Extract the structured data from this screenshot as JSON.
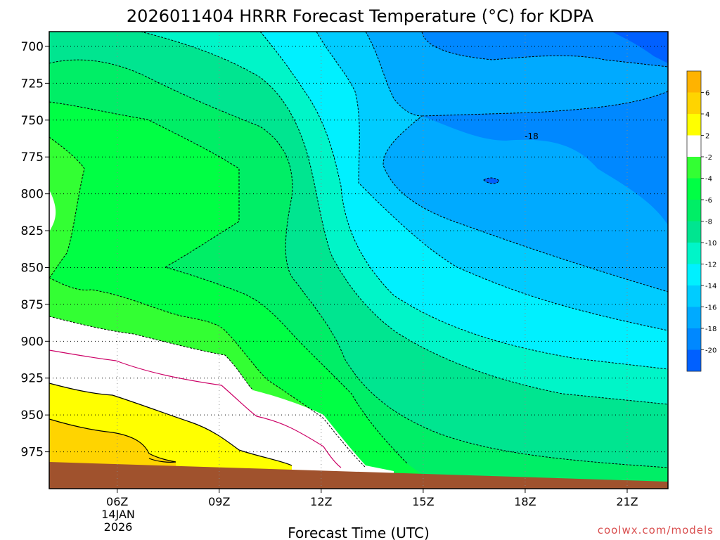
{
  "chart_data": {
    "type": "contour",
    "title": "2026011404 HRRR Forecast Temperature (°C) for KDPA",
    "xlabel": "Forecast Time (UTC)",
    "ylabel": "",
    "x_ticks": [
      "06Z",
      "09Z",
      "12Z",
      "15Z",
      "18Z",
      "21Z"
    ],
    "x_date_label": [
      "14JAN",
      "2026"
    ],
    "x_range_hours": [
      4.0,
      22.2
    ],
    "y_ticks": [
      700,
      725,
      750,
      775,
      800,
      825,
      850,
      875,
      900,
      925,
      950,
      975
    ],
    "y_range_hpa": [
      690,
      1000
    ],
    "y_scale": "pressure (top-down)",
    "grid": "dotted",
    "contour_levels": [
      6,
      4,
      2,
      0,
      -2,
      -4,
      -6,
      -8,
      -10,
      -12,
      -14,
      -16,
      -18,
      -20
    ],
    "contour_labels": [
      {
        "text": "-18",
        "hour": 18.0,
        "hpa": 749
      }
    ],
    "ground_surface_hpa": [
      {
        "hour": 4.0,
        "hpa": 974
      },
      {
        "hour": 8.0,
        "hpa": 975
      },
      {
        "hour": 12.0,
        "hpa": 977
      },
      {
        "hour": 16.0,
        "hpa": 980
      },
      {
        "hour": 20.0,
        "hpa": 983
      },
      {
        "hour": 22.2,
        "hpa": 985
      }
    ],
    "colorbar": {
      "ticks": [
        "6",
        "4",
        "2",
        "-2",
        "-4",
        "-6",
        "-8",
        "-10",
        "-12",
        "-14",
        "-16",
        "-18",
        "-20"
      ],
      "colors": [
        "#ffb300",
        "#ffd400",
        "#ffff00",
        "#ffffff",
        "#33ff33",
        "#00ff44",
        "#00ee66",
        "#00e590",
        "#00f5c8",
        "#00f0ff",
        "#00ccff",
        "#00aaff",
        "#0088ff",
        "#0060ff"
      ]
    },
    "bands": [
      {
        "level": "<=-20",
        "color": "#0060ff"
      },
      {
        "level": "-20 to -18",
        "color": "#0088ff"
      },
      {
        "level": "-18 to -16",
        "color": "#00aaff"
      },
      {
        "level": "-16 to -14",
        "color": "#00ccff"
      },
      {
        "level": "-14 to -12",
        "color": "#00f0ff"
      },
      {
        "level": "-12 to -10",
        "color": "#00f5c8"
      },
      {
        "level": "-10 to -8",
        "color": "#00e590"
      },
      {
        "level": "-8 to -6",
        "color": "#00ee66"
      },
      {
        "level": "-6 to -4",
        "color": "#00ff44"
      },
      {
        "level": "-4 to -2",
        "color": "#33ff33"
      },
      {
        "level": "-2 to 2",
        "color": "#ffffff"
      },
      {
        "level": "2 to 4",
        "color": "#ffff00"
      },
      {
        "level": ">=4",
        "color": "#ffd400"
      }
    ],
    "freezing_line_color": "#cc0066",
    "ground_color": "#a0522d"
  },
  "credit": "coolwx.com/models"
}
